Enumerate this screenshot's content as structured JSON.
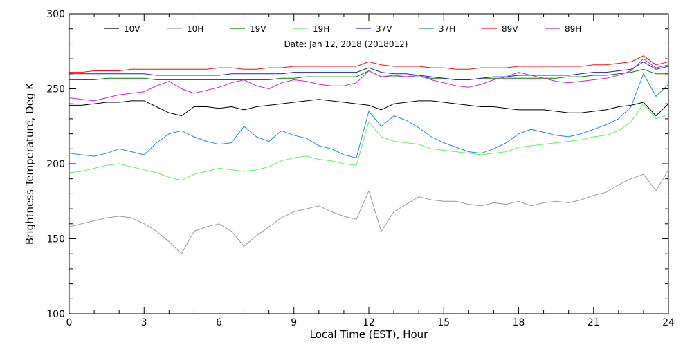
{
  "chart_data": {
    "type": "line",
    "subtitle": "Date: Jan 12, 2018 (2018012)",
    "xlabel": "Local Time (EST), Hour",
    "ylabel": "Brightness Temperature, Deg K",
    "xlim": [
      0,
      24
    ],
    "ylim": [
      100,
      300
    ],
    "x_ticks": [
      "0",
      "3",
      "6",
      "9",
      "12",
      "15",
      "18",
      "21",
      "24"
    ],
    "y_ticks": [
      "100",
      "150",
      "200",
      "250",
      "300"
    ],
    "grid": false,
    "legend_placement": "top",
    "x": [
      0,
      0.5,
      1,
      1.5,
      2,
      2.5,
      3,
      3.5,
      4,
      4.5,
      5,
      5.5,
      6,
      6.5,
      7,
      7.5,
      8,
      8.5,
      9,
      9.5,
      10,
      10.5,
      11,
      11.5,
      12,
      12.5,
      13,
      13.5,
      14,
      14.5,
      15,
      15.5,
      16,
      16.5,
      17,
      17.5,
      18,
      18.5,
      19,
      19.5,
      20,
      20.5,
      21,
      21.5,
      22,
      22.5,
      23,
      23.5,
      24
    ],
    "series": [
      {
        "name": "10V",
        "color": "#000000",
        "values": [
          239,
          239,
          240,
          241,
          241,
          242,
          242,
          238,
          234,
          232,
          238,
          238,
          237,
          238,
          236,
          238,
          239,
          240,
          241,
          242,
          243,
          242,
          241,
          240,
          239,
          236,
          240,
          241,
          242,
          242,
          241,
          240,
          239,
          238,
          238,
          237,
          236,
          236,
          236,
          235,
          234,
          234,
          235,
          236,
          238,
          239,
          241,
          232,
          240
        ]
      },
      {
        "name": "10H",
        "color": "#999999",
        "values": [
          158,
          160,
          162,
          164,
          165,
          164,
          160,
          155,
          148,
          140,
          155,
          158,
          160,
          155,
          145,
          152,
          158,
          164,
          168,
          170,
          172,
          168,
          165,
          163,
          182,
          155,
          168,
          173,
          178,
          176,
          175,
          175,
          173,
          172,
          174,
          173,
          175,
          172,
          174,
          175,
          174,
          176,
          179,
          181,
          186,
          190,
          193,
          182,
          196
        ]
      },
      {
        "name": "19V",
        "color": "#008000",
        "values": [
          256,
          256,
          256,
          257,
          257,
          257,
          257,
          256,
          256,
          256,
          256,
          256,
          256,
          256,
          256,
          256,
          256,
          257,
          257,
          258,
          258,
          258,
          258,
          258,
          262,
          258,
          258,
          258,
          258,
          257,
          257,
          256,
          256,
          257,
          257,
          257,
          257,
          257,
          257,
          257,
          258,
          258,
          259,
          259,
          260,
          261,
          263,
          260,
          260
        ]
      },
      {
        "name": "19H",
        "color": "#66ee66",
        "values": [
          194,
          195,
          197,
          199,
          200,
          198,
          196,
          194,
          191,
          189,
          193,
          195,
          197,
          196,
          195,
          196,
          198,
          202,
          204,
          205,
          203,
          202,
          200,
          199,
          228,
          218,
          215,
          214,
          213,
          210,
          209,
          208,
          207,
          206,
          207,
          208,
          211,
          212,
          213,
          214,
          215,
          216,
          218,
          219,
          222,
          228,
          240,
          230,
          233
        ]
      },
      {
        "name": "37V",
        "color": "#2020cc",
        "values": [
          260,
          260,
          260,
          260,
          260,
          260,
          260,
          259,
          259,
          259,
          259,
          259,
          259,
          260,
          260,
          260,
          260,
          260,
          261,
          261,
          261,
          261,
          261,
          261,
          264,
          261,
          260,
          260,
          259,
          258,
          257,
          256,
          256,
          257,
          258,
          258,
          259,
          259,
          259,
          259,
          259,
          260,
          261,
          261,
          262,
          263,
          268,
          263,
          265
        ]
      },
      {
        "name": "37H",
        "color": "#1e88dd",
        "values": [
          207,
          206,
          205,
          207,
          210,
          208,
          206,
          214,
          220,
          222,
          218,
          215,
          213,
          214,
          225,
          218,
          215,
          222,
          219,
          217,
          212,
          210,
          206,
          204,
          235,
          225,
          232,
          229,
          224,
          218,
          214,
          211,
          208,
          207,
          210,
          214,
          220,
          223,
          221,
          219,
          218,
          220,
          223,
          226,
          230,
          238,
          260,
          245,
          253
        ]
      },
      {
        "name": "89V",
        "color": "#ee1111",
        "values": [
          261,
          261,
          262,
          262,
          262,
          263,
          263,
          263,
          263,
          263,
          263,
          263,
          264,
          264,
          263,
          263,
          264,
          264,
          265,
          265,
          265,
          265,
          265,
          265,
          268,
          266,
          265,
          265,
          265,
          264,
          264,
          263,
          263,
          264,
          264,
          264,
          265,
          265,
          265,
          265,
          265,
          265,
          266,
          266,
          267,
          268,
          272,
          266,
          268
        ]
      },
      {
        "name": "89H",
        "color": "#cc22cc",
        "values": [
          244,
          243,
          242,
          244,
          246,
          247,
          248,
          252,
          255,
          250,
          247,
          249,
          251,
          254,
          256,
          252,
          250,
          254,
          256,
          255,
          253,
          252,
          252,
          254,
          262,
          258,
          259,
          258,
          259,
          256,
          254,
          252,
          251,
          253,
          256,
          258,
          261,
          259,
          257,
          255,
          254,
          255,
          256,
          257,
          259,
          262,
          270,
          264,
          266
        ]
      }
    ]
  }
}
